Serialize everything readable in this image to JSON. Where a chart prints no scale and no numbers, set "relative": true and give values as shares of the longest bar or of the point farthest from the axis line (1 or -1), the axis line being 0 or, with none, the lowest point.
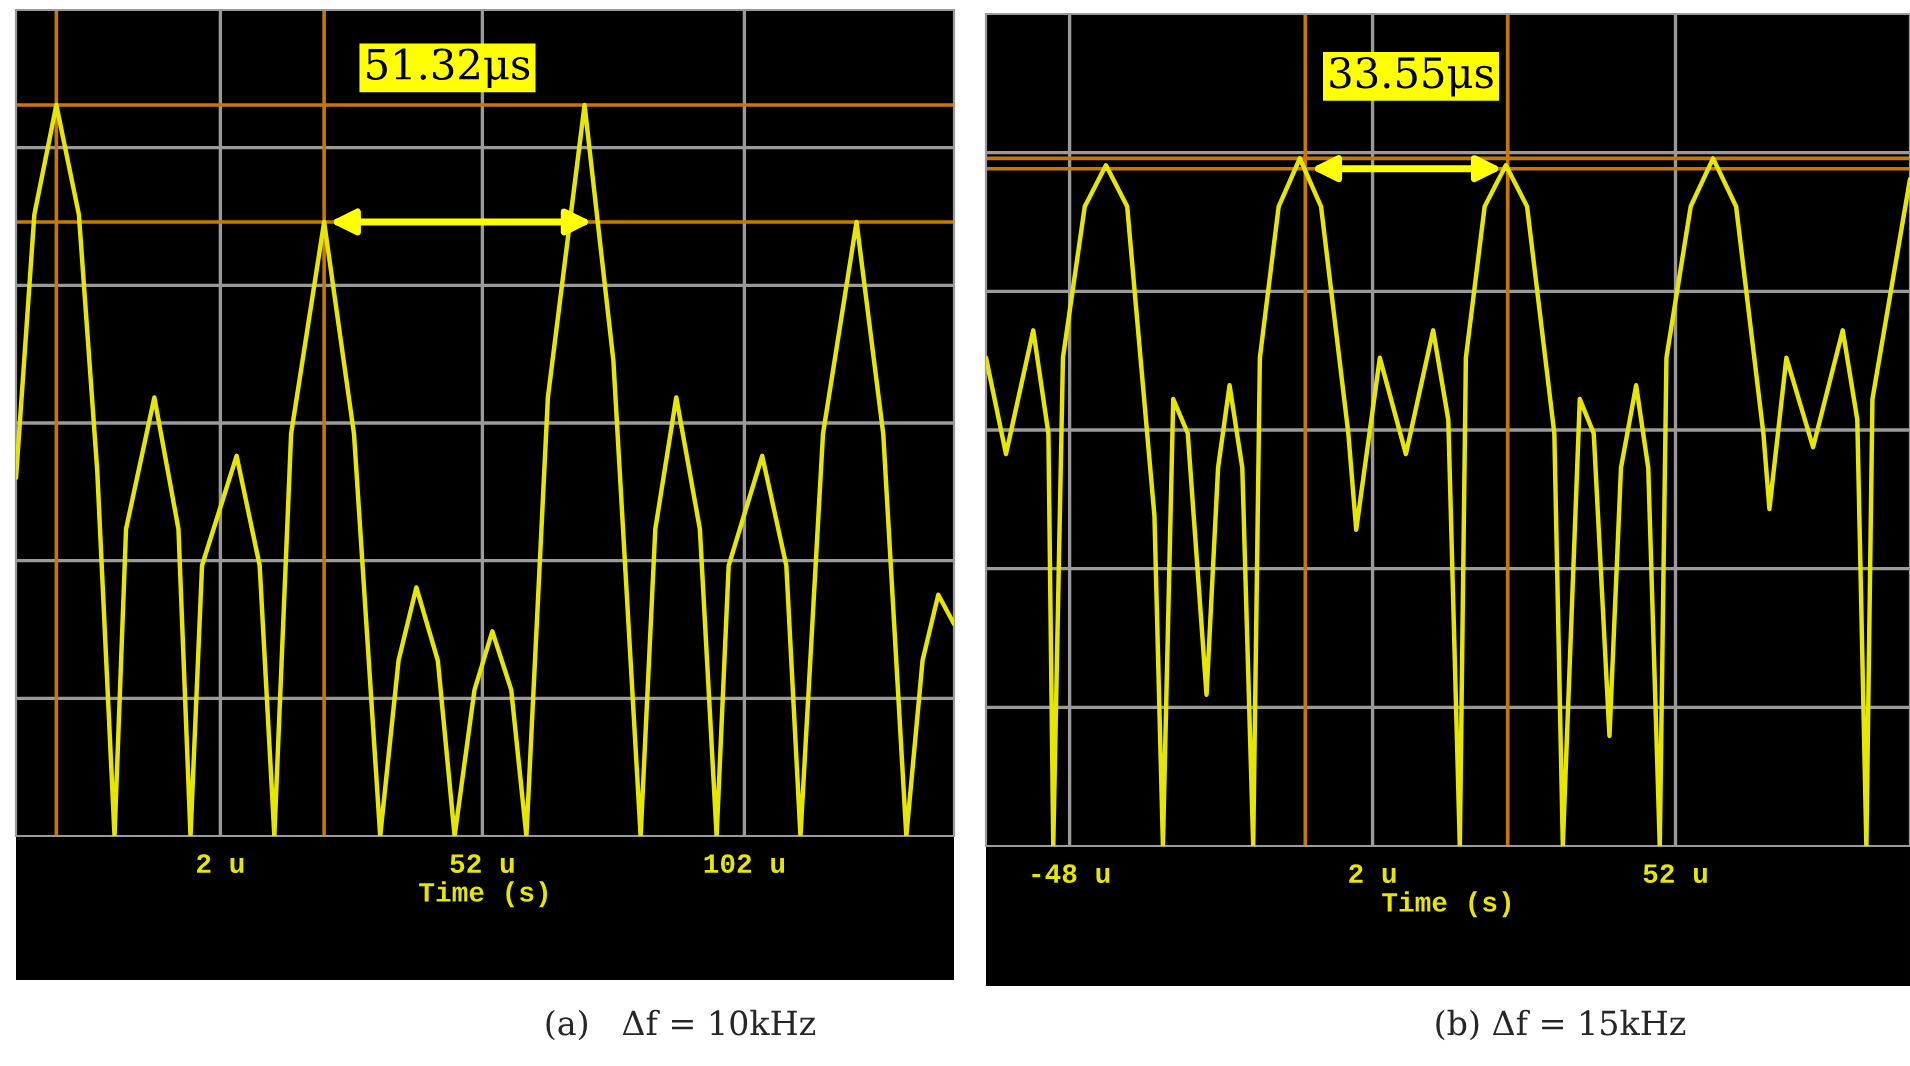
{
  "chart_data": [
    {
      "type": "line",
      "title": "(a)   Δf = 10kHz",
      "xlabel": "Time (s)",
      "relative": true,
      "grid": true,
      "tick_labels": "x",
      "xlim": [
        -37,
        142
      ],
      "xticks": [
        {
          "value": 2,
          "label": "2 u"
        },
        {
          "value": 52,
          "label": "52 u"
        },
        {
          "value": 102,
          "label": "102 u"
        }
      ],
      "series": [
        {
          "color": "#e6e600",
          "x": [
            -37,
            -33.5,
            -29.3,
            -25,
            -21.5,
            -18.2,
            -16,
            -10.6,
            -6,
            -3.7,
            -1.5,
            5.1,
            9.5,
            12.3,
            15.5,
            21.8,
            27.5,
            32.5,
            36,
            39.4,
            43.5,
            46.7,
            50.5,
            53.9,
            57.5,
            60.4,
            64.5,
            71.5,
            77,
            82.2,
            85,
            89,
            93.5,
            96.7,
            99,
            105.4,
            110,
            112.7,
            117,
            123.4,
            128.5,
            132.9,
            136,
            139,
            142
          ],
          "values": [
            0.49,
            0.85,
            1.0,
            0.85,
            0.5,
            0,
            0.42,
            0.6,
            0.42,
            0,
            0.37,
            0.52,
            0.37,
            0,
            0.55,
            0.84,
            0.55,
            0,
            0.24,
            0.34,
            0.24,
            0,
            0.2,
            0.28,
            0.2,
            0,
            0.6,
            1.0,
            0.65,
            0,
            0.42,
            0.6,
            0.42,
            0,
            0.37,
            0.52,
            0.37,
            0,
            0.55,
            0.84,
            0.55,
            0,
            0.24,
            0.33,
            0.29
          ]
        }
      ],
      "ref_lines": [
        {
          "axis": "x",
          "value": -29.3,
          "color": "#c87800"
        },
        {
          "axis": "x",
          "value": 21.8,
          "color": "#c87800"
        },
        {
          "axis": "y",
          "value": 1.0,
          "color": "#c87800"
        },
        {
          "axis": "y",
          "value": 0.84,
          "color": "#c87800"
        }
      ],
      "annotations": [
        "51.32μs"
      ]
    },
    {
      "type": "line",
      "title": "(b) Δf = 15kHz",
      "xlabel": "Time (s)",
      "relative": true,
      "grid": true,
      "tick_labels": "x",
      "xlim": [
        -61.8,
        90.7
      ],
      "xticks": [
        {
          "value": -48,
          "label": "-48 u"
        },
        {
          "value": 2,
          "label": "2 u"
        },
        {
          "value": 52,
          "label": "52 u"
        }
      ],
      "series": [
        {
          "color": "#e6e600",
          "x": [
            -61.8,
            -58.5,
            -54.0,
            -51.5,
            -50.7,
            -49.1,
            -45.5,
            -42.0,
            -38.5,
            -34.0,
            -32.6,
            -30.9,
            -28.5,
            -25.4,
            -23.5,
            -21.6,
            -19.5,
            -17.7,
            -16.6,
            -13.5,
            -10.0,
            -6.5,
            -2.0,
            -0.7,
            3.2,
            7.5,
            12.0,
            14.5,
            16.4,
            17.4,
            20.5,
            24.0,
            27.5,
            32.0,
            33.4,
            36.2,
            38.5,
            41.1,
            43.0,
            45.5,
            47.5,
            49.4,
            50.5,
            54.5,
            58.2,
            62.0,
            66.5,
            67.5,
            70.3,
            74.7,
            79.6,
            82.0,
            83.5,
            84.5,
            90.7
          ],
          "values": [
            0.71,
            0.57,
            0.75,
            0.6,
            0,
            0.71,
            0.93,
            0.99,
            0.93,
            0.48,
            0,
            0.65,
            0.6,
            0.22,
            0.55,
            0.67,
            0.55,
            0,
            0.71,
            0.93,
            1.0,
            0.93,
            0.6,
            0.46,
            0.71,
            0.57,
            0.75,
            0.62,
            0,
            0.71,
            0.93,
            0.99,
            0.93,
            0.6,
            0,
            0.65,
            0.6,
            0.16,
            0.55,
            0.67,
            0.55,
            0,
            0.71,
            0.93,
            1.0,
            0.93,
            0.6,
            0.49,
            0.71,
            0.58,
            0.75,
            0.62,
            0,
            0.65,
            0.97
          ]
        }
      ],
      "ref_lines": [
        {
          "axis": "x",
          "value": -9.1,
          "color": "#c87800"
        },
        {
          "axis": "x",
          "value": 24.3,
          "color": "#c87800"
        },
        {
          "axis": "y",
          "value": 1.0,
          "color": "#c87800"
        },
        {
          "axis": "y",
          "value": 0.985,
          "color": "#c87800"
        }
      ],
      "annotations": [
        "33.55μs"
      ]
    }
  ]
}
